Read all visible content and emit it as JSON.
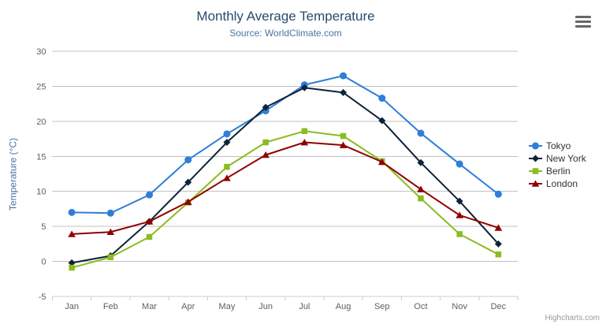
{
  "title": "Monthly Average Temperature",
  "subtitle": "Source: WorldClimate.com",
  "y_axis_title": "Temperature (°C)",
  "credits": "Highcharts.com",
  "menu_icon": "hamburger-export-menu",
  "colors": {
    "background": "#ffffff",
    "grid": "#c0c0c0",
    "axis_line": "#c0d0e0",
    "tick": "#c0d0e0",
    "axis_label": "#606060",
    "title": "#274b6d",
    "subtitle": "#4d759e",
    "y_axis_title": "#4572a7",
    "legend_text": "#333333",
    "credit": "#999999",
    "menu_icon": "#666666"
  },
  "chart_data": {
    "type": "line",
    "title": "Monthly Average Temperature",
    "subtitle": "Source: WorldClimate.com",
    "xlabel": "",
    "ylabel": "Temperature (°C)",
    "ylim": [
      -5,
      30
    ],
    "y_ticks": [
      -5,
      0,
      5,
      10,
      15,
      20,
      25,
      30
    ],
    "grid": true,
    "legend_position": "right",
    "categories": [
      "Jan",
      "Feb",
      "Mar",
      "Apr",
      "May",
      "Jun",
      "Jul",
      "Aug",
      "Sep",
      "Oct",
      "Nov",
      "Dec"
    ],
    "series": [
      {
        "name": "Tokyo",
        "color": "#2f7ed8",
        "marker": "circle",
        "values": [
          7.0,
          6.9,
          9.5,
          14.5,
          18.2,
          21.5,
          25.2,
          26.5,
          23.3,
          18.3,
          13.9,
          9.6
        ]
      },
      {
        "name": "New York",
        "color": "#0d233a",
        "marker": "diamond",
        "values": [
          -0.2,
          0.8,
          5.7,
          11.3,
          17.0,
          22.0,
          24.8,
          24.1,
          20.1,
          14.1,
          8.6,
          2.5
        ]
      },
      {
        "name": "Berlin",
        "color": "#8bbc21",
        "marker": "square",
        "values": [
          -0.9,
          0.6,
          3.5,
          8.4,
          13.5,
          17.0,
          18.6,
          17.9,
          14.3,
          9.0,
          3.9,
          1.0
        ]
      },
      {
        "name": "London",
        "color": "#910000",
        "marker": "triangle",
        "values": [
          3.9,
          4.2,
          5.7,
          8.5,
          11.9,
          15.2,
          17.0,
          16.6,
          14.2,
          10.3,
          6.6,
          4.8
        ]
      }
    ]
  }
}
